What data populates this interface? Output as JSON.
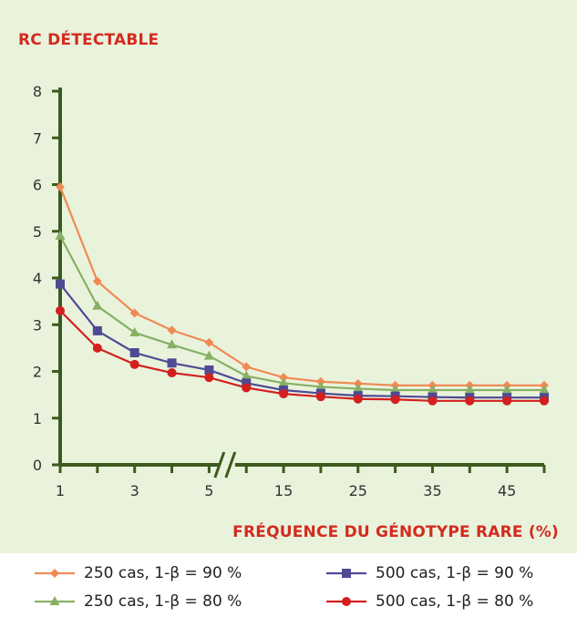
{
  "chart_data": {
    "type": "line",
    "ylabel": "RC DÉTECTABLE",
    "xlabel": "FRÉQUENCE DU GÉNOTYPE RARE (%)",
    "ylim": [
      0,
      8
    ],
    "y_ticks": [
      "0",
      "1",
      "2",
      "3",
      "4",
      "5",
      "6",
      "7",
      "8"
    ],
    "x_axis_break": "between 5 and 10",
    "x": [
      1,
      2,
      3,
      4,
      5,
      10,
      15,
      20,
      25,
      30,
      35,
      40,
      45,
      50
    ],
    "x_tick_labels": [
      "1",
      "3",
      "5",
      "15",
      "25",
      "35",
      "45"
    ],
    "series": [
      {
        "name": "250 cas, 1-β = 90 %",
        "color": "#f08a55",
        "marker": "diamond",
        "values": [
          5.95,
          3.93,
          3.25,
          2.88,
          2.62,
          2.1,
          1.87,
          1.78,
          1.74,
          1.7,
          1.7,
          1.7,
          1.7,
          1.7
        ]
      },
      {
        "name": "250 cas, 1-β = 80 %",
        "color": "#86b064",
        "marker": "triangle",
        "values": [
          4.9,
          3.4,
          2.83,
          2.57,
          2.33,
          1.9,
          1.75,
          1.67,
          1.63,
          1.6,
          1.6,
          1.6,
          1.6,
          1.6
        ]
      },
      {
        "name": "500 cas, 1-β = 90 %",
        "color": "#4f4a94",
        "marker": "square",
        "values": [
          3.87,
          2.87,
          2.4,
          2.18,
          2.03,
          1.75,
          1.6,
          1.53,
          1.48,
          1.47,
          1.45,
          1.44,
          1.44,
          1.44
        ]
      },
      {
        "name": "500 cas, 1-β = 80 %",
        "color": "#d41f1f",
        "marker": "circle",
        "values": [
          3.3,
          2.5,
          2.15,
          1.97,
          1.87,
          1.65,
          1.52,
          1.46,
          1.41,
          1.4,
          1.37,
          1.37,
          1.37,
          1.37
        ]
      }
    ],
    "grid": false,
    "legend_placement": "bottom"
  }
}
